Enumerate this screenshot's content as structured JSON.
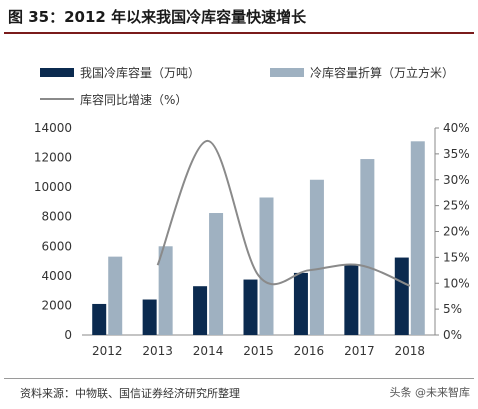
{
  "figure": {
    "title": "图 35：2012 年以来我国冷库容量快速增长",
    "source": "资料来源：中物联、国信证券经济研究所整理",
    "watermark": "头条 @未来智库"
  },
  "colors": {
    "series_capacity": "#0b2a4f",
    "series_converted": "#9fb1c1",
    "series_growth": "#8a8a8a",
    "title_rule": "#7a1b1b",
    "axis": "#888888",
    "text": "#333333"
  },
  "chart_data": {
    "type": "bar",
    "categories": [
      "2012",
      "2013",
      "2014",
      "2015",
      "2016",
      "2017",
      "2018"
    ],
    "series": [
      {
        "name": "我国冷库容量（万吨）",
        "type": "bar",
        "axis": "left",
        "values": [
          2100,
          2400,
          3300,
          3750,
          4200,
          4775,
          5238
        ]
      },
      {
        "name": "冷库容量折算（万立方米）",
        "type": "bar",
        "axis": "left",
        "values": [
          5300,
          6000,
          8250,
          9300,
          10500,
          11900,
          13100
        ]
      },
      {
        "name": "库容同比增速（%）",
        "type": "line",
        "axis": "right",
        "values": [
          null,
          13.5,
          37.5,
          11.5,
          12.5,
          13.5,
          9.5
        ]
      }
    ],
    "y_left": {
      "min": 0,
      "max": 14000,
      "ticks": [
        0,
        2000,
        4000,
        6000,
        8000,
        10000,
        12000,
        14000
      ]
    },
    "y_right": {
      "min": 0,
      "max": 40,
      "ticks": [
        0,
        5,
        10,
        15,
        20,
        25,
        30,
        35,
        40
      ],
      "tick_labels": [
        "0%",
        "5%",
        "10%",
        "15%",
        "20%",
        "25%",
        "30%",
        "35%",
        "40%"
      ]
    },
    "legend_position": "top",
    "grid": false
  }
}
